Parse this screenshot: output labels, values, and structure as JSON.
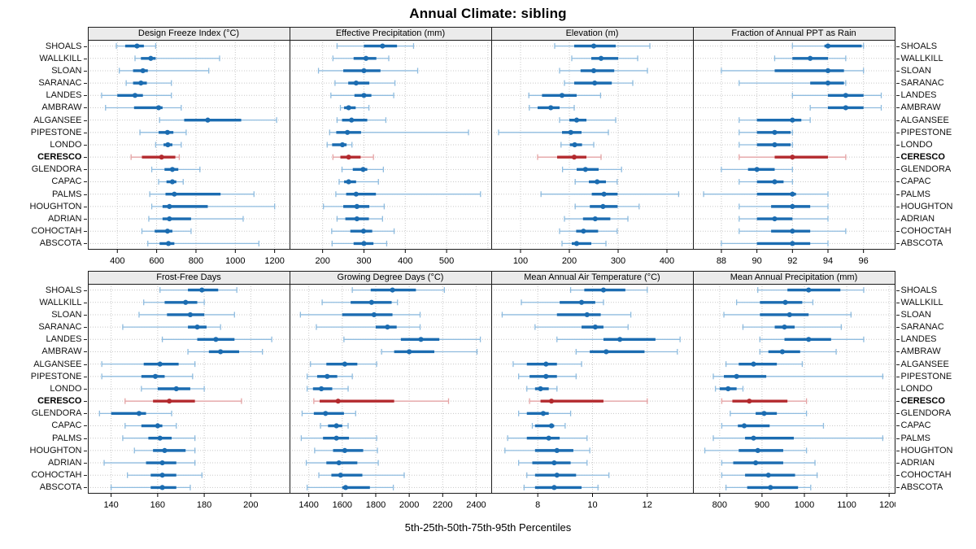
{
  "title": "Annual Climate: sibling",
  "caption": "5th-25th-50th-75th-95th Percentiles",
  "highlight_site": "CERESCO",
  "sites": [
    "SHOALS",
    "WALLKILL",
    "SLOAN",
    "SARANAC",
    "LANDES",
    "AMBRAW",
    "ALGANSEE",
    "PIPESTONE",
    "LONDO",
    "CERESCO",
    "GLENDORA",
    "CAPAC",
    "PALMS",
    "HOUGHTON",
    "ADRIAN",
    "COHOCTAH",
    "ABSCOTA"
  ],
  "colors": {
    "series": "#1b6cb1",
    "series_light": "#8fbcdf",
    "highlight": "#b32a2e",
    "highlight_light": "#e4a3a4",
    "strip_bg": "#ebebeb",
    "grid": "#c8c8c8",
    "border": "#1c1c1c"
  },
  "chart_data": [
    {
      "type": "dotplot-percentiles",
      "title": "Design Freeze Index (°C)",
      "percentiles": [
        5,
        25,
        50,
        75,
        95
      ],
      "xlim": [
        250,
        1280
      ],
      "xticks": [
        400,
        600,
        800,
        1000,
        1200
      ],
      "values": {
        "SHOALS": [
          395,
          440,
          500,
          535,
          595
        ],
        "WALLKILL": [
          490,
          520,
          570,
          595,
          920
        ],
        "SLOAN": [
          410,
          480,
          530,
          555,
          865
        ],
        "SARANAC": [
          445,
          480,
          520,
          550,
          675
        ],
        "LANDES": [
          320,
          400,
          490,
          530,
          675
        ],
        "AMBRAW": [
          340,
          485,
          610,
          630,
          725
        ],
        "ALGANSEE": [
          615,
          740,
          860,
          1030,
          1210
        ],
        "PIPESTONE": [
          515,
          610,
          655,
          685,
          750
        ],
        "LONDO": [
          595,
          635,
          657,
          680,
          725
        ],
        "CERESCO": [
          470,
          525,
          625,
          695,
          715
        ],
        "GLENDORA": [
          575,
          640,
          680,
          710,
          820
        ],
        "CAPAC": [
          610,
          650,
          680,
          700,
          735
        ],
        "PALMS": [
          565,
          645,
          690,
          925,
          1095
        ],
        "HOUGHTON": [
          575,
          630,
          665,
          860,
          1200
        ],
        "ADRIAN": [
          560,
          630,
          665,
          775,
          1040
        ],
        "COHOCTAH": [
          525,
          590,
          655,
          680,
          775
        ],
        "ABSCOTA": [
          555,
          615,
          660,
          690,
          1120
        ]
      }
    },
    {
      "type": "dotplot-percentiles",
      "title": "Effective Precipitation (mm)",
      "percentiles": [
        5,
        25,
        50,
        75,
        95
      ],
      "xlim": [
        120,
        610
      ],
      "xticks": [
        200,
        300,
        400,
        500
      ],
      "values": {
        "SHOALS": [
          235,
          300,
          345,
          380,
          420
        ],
        "WALLKILL": [
          225,
          275,
          305,
          330,
          360
        ],
        "SLOAN": [
          190,
          250,
          300,
          340,
          430
        ],
        "SARANAC": [
          230,
          262,
          281,
          313,
          375
        ],
        "LANDES": [
          220,
          277,
          300,
          318,
          372
        ],
        "AMBRAW": [
          243,
          252,
          263,
          280,
          312
        ],
        "ALGANSEE": [
          235,
          247,
          270,
          308,
          353
        ],
        "PIPESTONE": [
          217,
          233,
          260,
          293,
          553
        ],
        "LONDO": [
          211,
          223,
          248,
          258,
          271
        ],
        "CERESCO": [
          225,
          243,
          263,
          292,
          323
        ],
        "GLENDORA": [
          247,
          273,
          298,
          308,
          347
        ],
        "CAPAC": [
          240,
          252,
          263,
          281,
          335
        ],
        "PALMS": [
          232,
          257,
          281,
          329,
          582
        ],
        "HOUGHTON": [
          202,
          250,
          283,
          313,
          349
        ],
        "ADRIAN": [
          235,
          255,
          283,
          312,
          345
        ],
        "COHOCTAH": [
          222,
          267,
          299,
          320,
          373
        ],
        "ABSCOTA": [
          223,
          275,
          300,
          323,
          355
        ]
      }
    },
    {
      "type": "dotplot-percentiles",
      "title": "Elevation (m)",
      "percentiles": [
        5,
        25,
        50,
        75,
        95
      ],
      "xlim": [
        40,
        455
      ],
      "xticks": [
        100,
        200,
        300,
        400
      ],
      "values": {
        "SHOALS": [
          170,
          210,
          250,
          295,
          365
        ],
        "WALLKILL": [
          205,
          245,
          265,
          300,
          340
        ],
        "SLOAN": [
          180,
          223,
          250,
          292,
          360
        ],
        "SARANAC": [
          190,
          210,
          252,
          287,
          330
        ],
        "LANDES": [
          117,
          144,
          185,
          215,
          264
        ],
        "AMBRAW": [
          118,
          135,
          162,
          180,
          210
        ],
        "ALGANSEE": [
          180,
          200,
          215,
          235,
          295
        ],
        "PIPESTONE": [
          55,
          185,
          203,
          225,
          280
        ],
        "LONDO": [
          183,
          201,
          211,
          226,
          250
        ],
        "CERESCO": [
          135,
          175,
          210,
          235,
          265
        ],
        "GLENDORA": [
          186,
          215,
          233,
          260,
          307
        ],
        "CAPAC": [
          212,
          240,
          257,
          275,
          298
        ],
        "PALMS": [
          142,
          246,
          271,
          299,
          424
        ],
        "HOUGHTON": [
          212,
          242,
          269,
          299,
          343
        ],
        "ADRIAN": [
          190,
          228,
          253,
          284,
          320
        ],
        "COHOCTAH": [
          180,
          214,
          229,
          259,
          298
        ],
        "ABSCOTA": [
          185,
          205,
          215,
          245,
          275
        ]
      }
    },
    {
      "type": "dotplot-percentiles",
      "title": "Fraction of Annual PPT as Rain",
      "percentiles": [
        5,
        25,
        50,
        75,
        95
      ],
      "xlim": [
        86.4,
        97.8
      ],
      "xticks": [
        88,
        90,
        92,
        94,
        96
      ],
      "values": {
        "SHOALS": [
          92,
          93.8,
          94,
          95.9,
          96
        ],
        "WALLKILL": [
          91,
          92,
          93,
          94,
          95
        ],
        "SLOAN": [
          88,
          91,
          94,
          94.9,
          96
        ],
        "SARANAC": [
          89,
          93,
          94,
          94.9,
          95
        ],
        "LANDES": [
          92,
          94,
          95,
          96,
          97
        ],
        "AMBRAW": [
          93,
          94,
          95,
          96,
          97
        ],
        "ALGANSEE": [
          89,
          90,
          92,
          92.5,
          93
        ],
        "PIPESTONE": [
          89,
          90,
          91,
          91.9,
          92
        ],
        "LONDO": [
          89,
          90,
          91,
          91.9,
          92
        ],
        "CERESCO": [
          89,
          91,
          92,
          94,
          95
        ],
        "GLENDORA": [
          88,
          89.5,
          90,
          91,
          92
        ],
        "CAPAC": [
          89,
          90,
          91,
          91.5,
          92
        ],
        "PALMS": [
          87,
          90,
          92,
          92.2,
          94
        ],
        "HOUGHTON": [
          89,
          90.8,
          92,
          93,
          94
        ],
        "ADRIAN": [
          89,
          90,
          91,
          92,
          94
        ],
        "COHOCTAH": [
          89,
          90.8,
          92,
          93,
          95
        ],
        "ABSCOTA": [
          88,
          90,
          92,
          93,
          94
        ]
      }
    },
    {
      "type": "dotplot-percentiles",
      "title": "Frost-Free Days",
      "percentiles": [
        5,
        25,
        50,
        75,
        95
      ],
      "xlim": [
        130,
        217
      ],
      "xticks": [
        140,
        160,
        180,
        200
      ],
      "values": {
        "SHOALS": [
          161,
          173,
          179,
          186,
          194
        ],
        "WALLKILL": [
          154,
          163,
          172,
          177,
          180
        ],
        "SLOAN": [
          152,
          164,
          174,
          180,
          193
        ],
        "SARANAC": [
          145,
          173,
          177,
          181,
          187
        ],
        "LANDES": [
          162,
          177,
          185,
          193,
          209
        ],
        "AMBRAW": [
          173,
          182,
          187,
          195,
          205
        ],
        "ALGANSEE": [
          136,
          154,
          161,
          169,
          176
        ],
        "PIPESTONE": [
          136,
          153,
          159,
          163,
          175
        ],
        "LONDO": [
          153,
          160,
          168,
          174,
          180
        ],
        "CERESCO": [
          146,
          158,
          165,
          176,
          196
        ],
        "GLENDORA": [
          135,
          140,
          152,
          155,
          166
        ],
        "CAPAC": [
          146,
          153,
          160,
          162,
          168
        ],
        "PALMS": [
          145,
          156,
          161,
          166,
          176
        ],
        "HOUGHTON": [
          150,
          158,
          163,
          172,
          176
        ],
        "ADRIAN": [
          137,
          155,
          162,
          168,
          176
        ],
        "COHOCTAH": [
          147,
          157,
          162,
          168,
          179
        ],
        "ABSCOTA": [
          140,
          157,
          162,
          168,
          174
        ]
      }
    },
    {
      "type": "dotplot-percentiles",
      "title": "Growing Degree Days (°C)",
      "percentiles": [
        5,
        25,
        50,
        75,
        95
      ],
      "xlim": [
        1285,
        2495
      ],
      "xticks": [
        1400,
        1600,
        1800,
        2000,
        2200,
        2400
      ],
      "values": {
        "SHOALS": [
          1660,
          1770,
          1900,
          2040,
          2210
        ],
        "WALLKILL": [
          1480,
          1650,
          1775,
          1895,
          1930
        ],
        "SLOAN": [
          1350,
          1600,
          1790,
          1900,
          2065
        ],
        "SARANAC": [
          1445,
          1800,
          1870,
          1925,
          2065
        ],
        "LANDES": [
          1610,
          1950,
          2070,
          2180,
          2425
        ],
        "AMBRAW": [
          1835,
          1910,
          2000,
          2150,
          2405
        ],
        "ALGANSEE": [
          1410,
          1505,
          1615,
          1690,
          1805
        ],
        "PIPESTONE": [
          1390,
          1450,
          1510,
          1570,
          1660
        ],
        "LONDO": [
          1390,
          1425,
          1475,
          1540,
          1635
        ],
        "CERESCO": [
          1430,
          1465,
          1575,
          1910,
          2235
        ],
        "GLENDORA": [
          1360,
          1430,
          1500,
          1610,
          1680
        ],
        "CAPAC": [
          1470,
          1515,
          1565,
          1600,
          1635
        ],
        "PALMS": [
          1355,
          1485,
          1565,
          1640,
          1805
        ],
        "HOUGHTON": [
          1435,
          1545,
          1615,
          1725,
          1810
        ],
        "ADRIAN": [
          1385,
          1505,
          1580,
          1690,
          1815
        ],
        "COHOCTAH": [
          1460,
          1535,
          1590,
          1720,
          1970
        ],
        "ABSCOTA": [
          1390,
          1600,
          1620,
          1765,
          1905
        ]
      }
    },
    {
      "type": "dotplot-percentiles",
      "title": "Mean Annual Air Temperature (°C)",
      "percentiles": [
        5,
        25,
        50,
        75,
        95
      ],
      "xlim": [
        6.3,
        13.7
      ],
      "xticks": [
        8,
        10,
        12
      ],
      "values": {
        "SHOALS": [
          9.2,
          9.7,
          10.4,
          11.2,
          12.0
        ],
        "WALLKILL": [
          7.4,
          8.8,
          9.6,
          10.1,
          10.4
        ],
        "SLOAN": [
          6.7,
          8.7,
          9.8,
          10.3,
          11.4
        ],
        "SARANAC": [
          7.9,
          9.6,
          10.1,
          10.4,
          11.3
        ],
        "LANDES": [
          8.7,
          10.4,
          11.0,
          12.3,
          13.2
        ],
        "AMBRAW": [
          9.4,
          9.9,
          10.5,
          11.9,
          13.1
        ],
        "ALGANSEE": [
          7.1,
          7.6,
          8.3,
          8.7,
          9.6
        ],
        "PIPESTONE": [
          7.3,
          7.7,
          8.3,
          8.7,
          9.4
        ],
        "LONDO": [
          7.6,
          7.9,
          8.1,
          8.4,
          8.7
        ],
        "CERESCO": [
          7.7,
          8.1,
          8.5,
          10.4,
          12.0
        ],
        "GLENDORA": [
          7.3,
          7.6,
          8.2,
          8.4,
          9.2
        ],
        "CAPAC": [
          7.8,
          7.9,
          8.5,
          8.6,
          9.0
        ],
        "PALMS": [
          6.9,
          7.6,
          8.4,
          8.8,
          9.8
        ],
        "HOUGHTON": [
          6.8,
          7.9,
          8.7,
          9.3,
          9.9
        ],
        "ADRIAN": [
          7.3,
          7.8,
          8.6,
          9.2,
          9.8
        ],
        "COHOCTAH": [
          7.6,
          7.9,
          8.7,
          9.4,
          10.6
        ],
        "ABSCOTA": [
          7.5,
          7.9,
          8.6,
          9.6,
          10.2
        ]
      }
    },
    {
      "type": "dotplot-percentiles",
      "title": "Mean Annual Precipitation (mm)",
      "percentiles": [
        5,
        25,
        50,
        75,
        95
      ],
      "xlim": [
        737,
        1215
      ],
      "xticks": [
        800,
        900,
        1000,
        1100,
        1200
      ],
      "values": {
        "SHOALS": [
          890,
          960,
          1010,
          1085,
          1140
        ],
        "WALLKILL": [
          840,
          895,
          955,
          995,
          1020
        ],
        "SLOAN": [
          810,
          895,
          965,
          1010,
          1110
        ],
        "SARANAC": [
          855,
          930,
          953,
          977,
          1087
        ],
        "LANDES": [
          895,
          953,
          1010,
          1063,
          1140
        ],
        "AMBRAW": [
          895,
          915,
          948,
          990,
          1075
        ],
        "ALGANSEE": [
          815,
          845,
          880,
          935,
          995
        ],
        "PIPESTONE": [
          785,
          810,
          840,
          910,
          1185
        ],
        "LONDO": [
          790,
          800,
          820,
          840,
          855
        ],
        "CERESCO": [
          805,
          830,
          870,
          960,
          1005
        ],
        "GLENDORA": [
          825,
          885,
          905,
          935,
          1005
        ],
        "CAPAC": [
          805,
          843,
          858,
          918,
          1045
        ],
        "PALMS": [
          785,
          860,
          880,
          975,
          1185
        ],
        "HOUGHTON": [
          765,
          845,
          890,
          950,
          1005
        ],
        "ADRIAN": [
          805,
          832,
          885,
          950,
          1025
        ],
        "COHOCTAH": [
          805,
          860,
          915,
          978,
          1030
        ],
        "ABSCOTA": [
          815,
          865,
          920,
          985,
          1015
        ]
      }
    }
  ]
}
